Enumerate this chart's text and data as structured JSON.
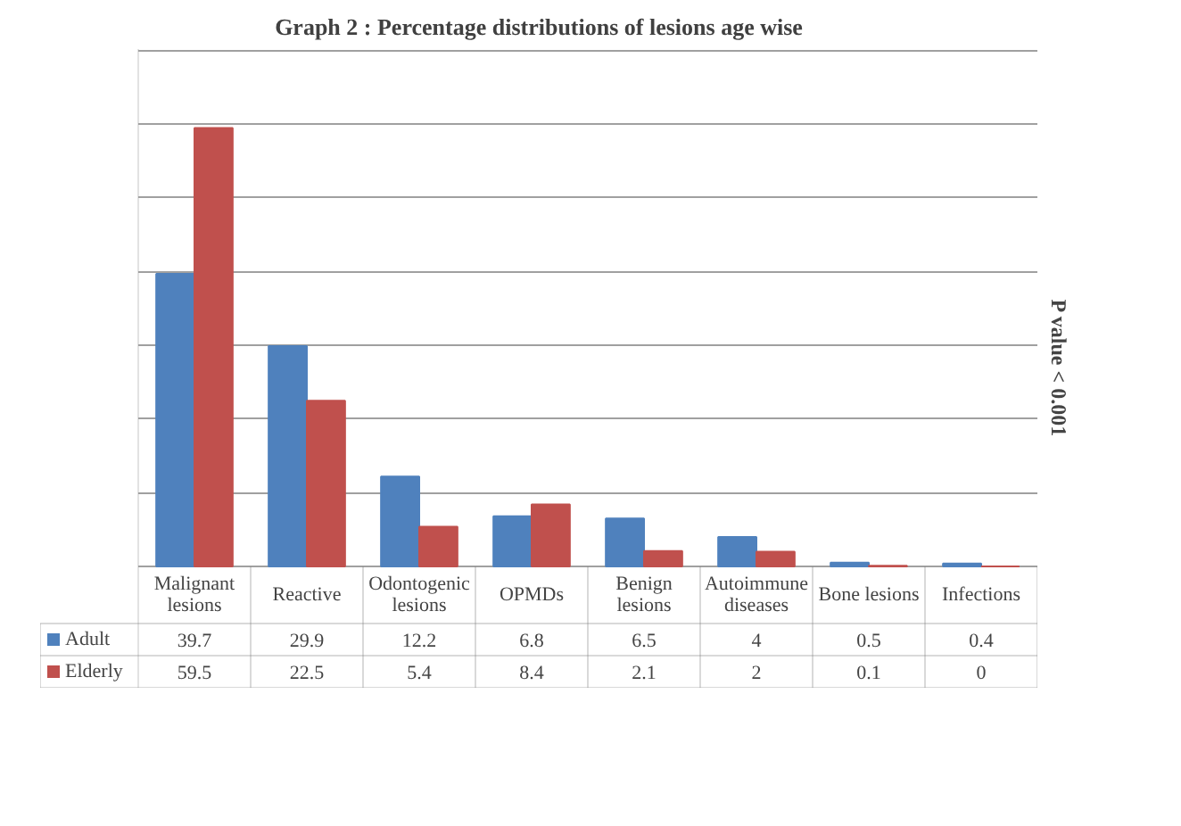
{
  "chart_data": {
    "type": "bar",
    "title": "Graph 2 : Percentage distributions of lesions age wise",
    "categories": [
      "Malignant lesions",
      "Reactive",
      "Odontogenic lesions",
      "OPMDs",
      "Benign lesions",
      "Autoimmune diseases",
      "Bone lesions",
      "Infections"
    ],
    "series": [
      {
        "name": "Adult",
        "color": "#4f81bd",
        "values": [
          39.7,
          29.9,
          12.2,
          6.8,
          6.5,
          4,
          0.5,
          0.4
        ]
      },
      {
        "name": "Elderly",
        "color": "#c0504d",
        "values": [
          59.5,
          22.5,
          5.4,
          8.4,
          2.1,
          2,
          0.1,
          0
        ]
      }
    ],
    "grid": "y",
    "legend": "bottom",
    "data_labels": true,
    "annotations": [
      "P value < 0.001"
    ]
  }
}
